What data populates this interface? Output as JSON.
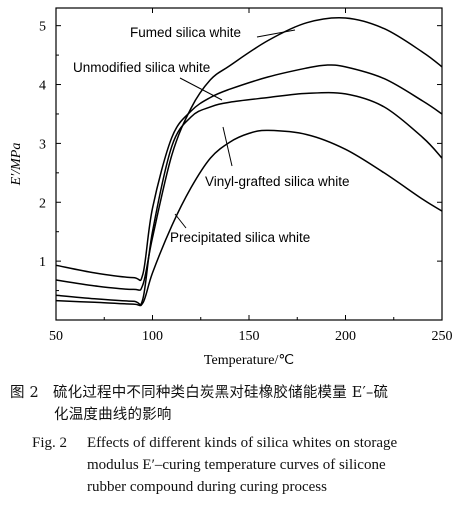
{
  "chart_data": {
    "type": "line",
    "xlabel": "Temperature/℃",
    "ylabel": "E′/MPa",
    "xlim": [
      50,
      250
    ],
    "ylim": [
      0,
      5.3
    ],
    "xticks": [
      50,
      100,
      150,
      200,
      250
    ],
    "yticks": [
      1,
      2,
      3,
      4,
      5
    ],
    "grid": false,
    "series": [
      {
        "name": "Fumed silica white",
        "x": [
          50,
          70,
          90,
          95,
          100,
          110,
          120,
          130,
          140,
          160,
          180,
          200,
          220,
          240,
          250
        ],
        "y": [
          0.68,
          0.58,
          0.52,
          0.6,
          1.4,
          2.8,
          3.6,
          4.08,
          4.32,
          4.75,
          5.05,
          5.13,
          4.95,
          4.55,
          4.3
        ]
      },
      {
        "name": "Unmodified silica white",
        "x": [
          50,
          70,
          90,
          95,
          100,
          110,
          120,
          130,
          140,
          160,
          180,
          190,
          200,
          220,
          240,
          250
        ],
        "y": [
          0.93,
          0.8,
          0.72,
          0.78,
          1.9,
          3.1,
          3.55,
          3.78,
          3.92,
          4.13,
          4.28,
          4.33,
          4.3,
          4.1,
          3.72,
          3.5
        ]
      },
      {
        "name": "Vinyl-grafted silica white",
        "x": [
          50,
          70,
          90,
          95,
          100,
          110,
          120,
          130,
          140,
          160,
          180,
          200,
          220,
          240,
          250
        ],
        "y": [
          0.42,
          0.36,
          0.32,
          0.36,
          1.5,
          2.95,
          3.45,
          3.62,
          3.7,
          3.78,
          3.85,
          3.84,
          3.62,
          3.1,
          2.75
        ]
      },
      {
        "name": "Precipitated silica white",
        "x": [
          50,
          70,
          90,
          95,
          100,
          110,
          120,
          130,
          140,
          150,
          160,
          180,
          200,
          220,
          240,
          250
        ],
        "y": [
          0.33,
          0.3,
          0.27,
          0.29,
          0.8,
          1.6,
          2.25,
          2.75,
          3.02,
          3.17,
          3.22,
          3.15,
          2.9,
          2.5,
          2.05,
          1.85
        ]
      }
    ]
  },
  "caption_cn": {
    "fig_no": "图 2",
    "line1": "硫化过程中不同种类白炭黑对硅橡胶储能模量 E′–硫",
    "line2": "化温度曲线的影响"
  },
  "caption_en": {
    "fig_no": "Fig. 2",
    "line1": "Effects of different kinds of silica whites on storage",
    "line2": "modulus E′–curing temperature curves of silicone",
    "line3": "rubber compound during curing process"
  }
}
